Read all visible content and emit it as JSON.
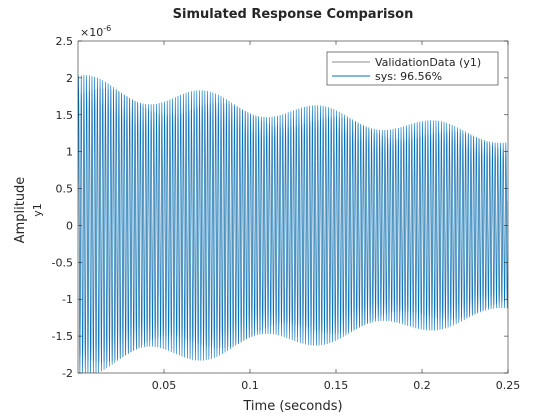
{
  "chart_data": {
    "type": "line",
    "title": "Simulated Response Comparison",
    "xlabel": "Time (seconds)",
    "ylabel": "Amplitude",
    "ylabel_sub": "y1",
    "y_exponent_label": "×10",
    "y_exponent_power": "-6",
    "xlim": [
      0.0,
      0.25
    ],
    "ylim": [
      -2.0,
      2.5
    ],
    "grid": false,
    "legend_position": "top-right",
    "x_ticks": [
      0.05,
      0.1,
      0.15,
      0.2,
      0.25
    ],
    "x_tick_labels": [
      "0.05",
      "0.1",
      "0.15",
      "0.2",
      "0.25"
    ],
    "y_ticks": [
      -2,
      -1.5,
      -1,
      -0.5,
      0,
      0.5,
      1,
      1.5,
      2,
      2.5
    ],
    "y_tick_labels": [
      "-2",
      "-1.5",
      "-1",
      "-0.5",
      "0",
      "0.5",
      "1",
      "1.5",
      "2",
      "2.5"
    ],
    "series": [
      {
        "name": "ValidationData (y1)",
        "color": "#8c8c8c",
        "signal": {
          "kind": "decaying_oscillation",
          "amp_start": 1.85,
          "amp_end": 1.15,
          "cycles": 160,
          "t_start": 0.0,
          "t_end": 0.25,
          "units": "1e-6"
        }
      },
      {
        "name": "sys: 96.56%",
        "color": "#0072bd",
        "signal": {
          "kind": "decaying_oscillation",
          "amp_start": 1.9,
          "amp_end": 1.2,
          "cycles": 160,
          "t_start": 0.0,
          "t_end": 0.25,
          "units": "1e-6"
        }
      }
    ]
  }
}
